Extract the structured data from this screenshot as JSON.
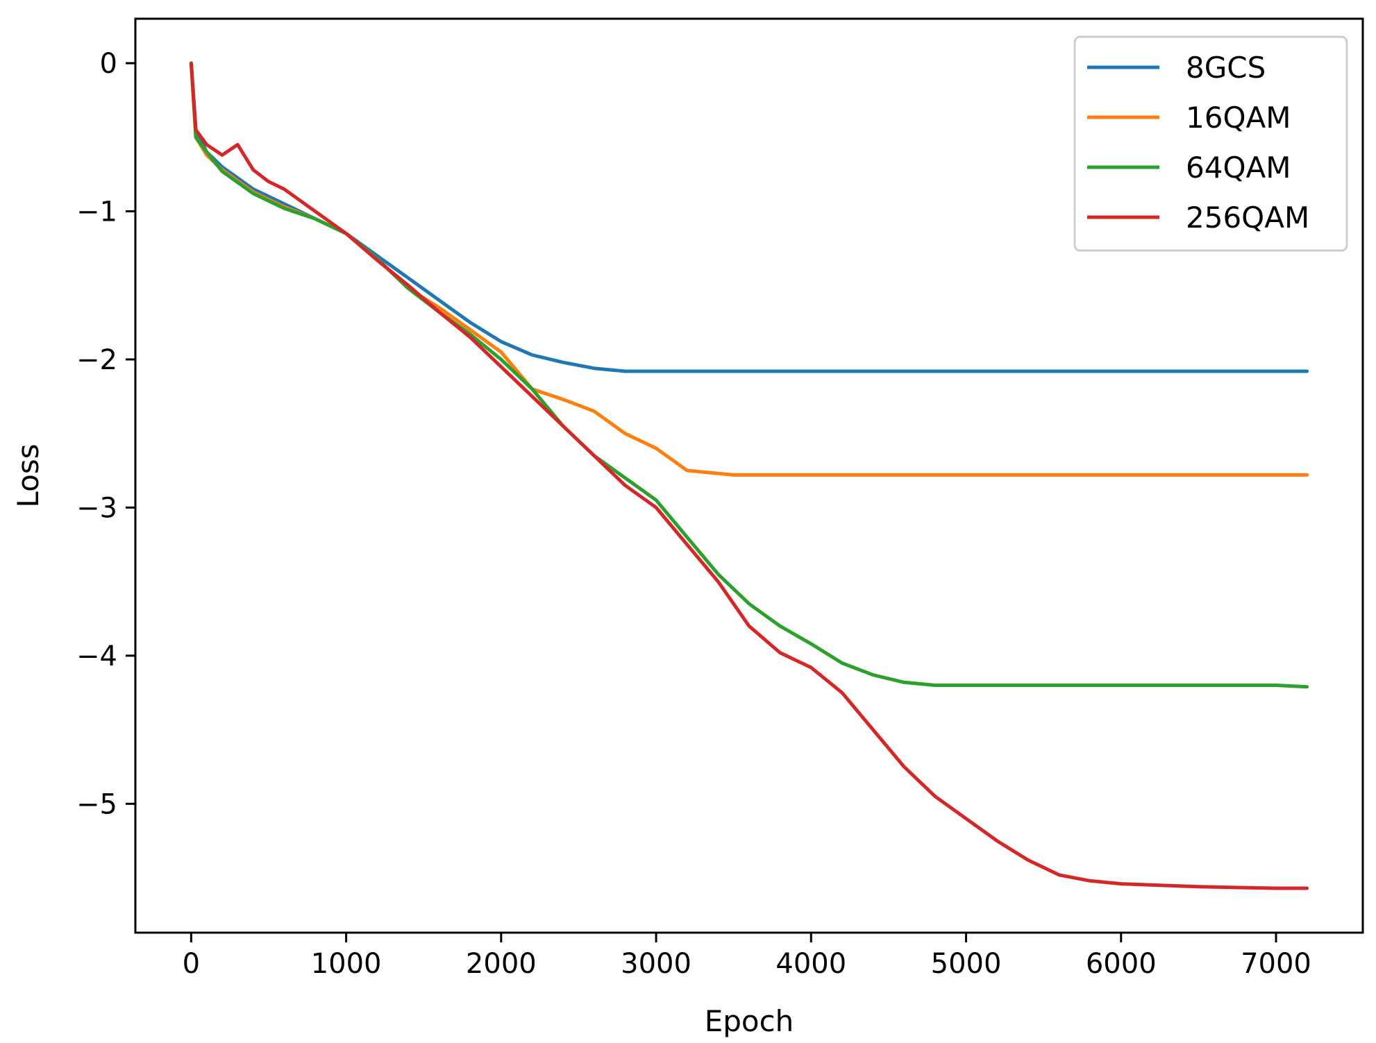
{
  "chart_data": {
    "type": "line",
    "xlabel": "Epoch",
    "ylabel": "Loss",
    "xlim": [
      -360,
      7560
    ],
    "ylim": [
      -5.87,
      0.3
    ],
    "xticks": [
      0,
      1000,
      2000,
      3000,
      4000,
      5000,
      6000,
      7000
    ],
    "xtick_labels": [
      "0",
      "1000",
      "2000",
      "3000",
      "4000",
      "5000",
      "6000",
      "7000"
    ],
    "yticks": [
      0,
      -1,
      -2,
      -3,
      -4,
      -5
    ],
    "ytick_labels": [
      "0",
      "−1",
      "−2",
      "−3",
      "−4",
      "−5"
    ],
    "grid": false,
    "legend_position": "top-right",
    "series": [
      {
        "name": "8GCS",
        "color": "#1f77b4",
        "x": [
          0,
          30,
          100,
          200,
          400,
          600,
          800,
          1000,
          1200,
          1400,
          1600,
          1800,
          2000,
          2200,
          2400,
          2600,
          2800,
          3000,
          3500,
          4000,
          4500,
          5000,
          5500,
          6000,
          6500,
          7000,
          7200
        ],
        "y": [
          0,
          -0.45,
          -0.6,
          -0.7,
          -0.85,
          -0.95,
          -1.05,
          -1.15,
          -1.3,
          -1.45,
          -1.6,
          -1.75,
          -1.88,
          -1.97,
          -2.02,
          -2.06,
          -2.08,
          -2.08,
          -2.08,
          -2.08,
          -2.08,
          -2.08,
          -2.08,
          -2.08,
          -2.08,
          -2.08,
          -2.08
        ]
      },
      {
        "name": "16QAM",
        "color": "#ff7f0e",
        "x": [
          0,
          30,
          100,
          200,
          400,
          600,
          800,
          1000,
          1200,
          1400,
          1600,
          1800,
          2000,
          2200,
          2400,
          2600,
          2800,
          3000,
          3200,
          3500,
          4000,
          4500,
          5000,
          5500,
          6000,
          6500,
          7000,
          7200
        ],
        "y": [
          0,
          -0.5,
          -0.62,
          -0.72,
          -0.87,
          -0.97,
          -1.05,
          -1.15,
          -1.32,
          -1.52,
          -1.65,
          -1.8,
          -1.95,
          -2.2,
          -2.27,
          -2.35,
          -2.5,
          -2.6,
          -2.75,
          -2.78,
          -2.78,
          -2.78,
          -2.78,
          -2.78,
          -2.78,
          -2.78,
          -2.78,
          -2.78
        ]
      },
      {
        "name": "64QAM",
        "color": "#2ca02c",
        "x": [
          0,
          30,
          100,
          200,
          400,
          600,
          800,
          1000,
          1200,
          1400,
          1600,
          1800,
          2000,
          2200,
          2400,
          2600,
          2800,
          3000,
          3200,
          3400,
          3600,
          3800,
          4000,
          4200,
          4400,
          4600,
          4800,
          5000,
          5500,
          6000,
          6500,
          7000,
          7200
        ],
        "y": [
          0,
          -0.5,
          -0.6,
          -0.73,
          -0.88,
          -0.98,
          -1.05,
          -1.15,
          -1.32,
          -1.52,
          -1.68,
          -1.83,
          -2.0,
          -2.2,
          -2.45,
          -2.65,
          -2.8,
          -2.95,
          -3.2,
          -3.45,
          -3.65,
          -3.8,
          -3.92,
          -4.05,
          -4.13,
          -4.18,
          -4.2,
          -4.2,
          -4.2,
          -4.2,
          -4.2,
          -4.2,
          -4.21
        ]
      },
      {
        "name": "256QAM",
        "color": "#d62728",
        "x": [
          0,
          30,
          100,
          200,
          300,
          400,
          500,
          600,
          800,
          1000,
          1200,
          1400,
          1600,
          1800,
          2000,
          2200,
          2400,
          2600,
          2800,
          3000,
          3200,
          3400,
          3600,
          3800,
          4000,
          4200,
          4400,
          4600,
          4800,
          5000,
          5200,
          5400,
          5600,
          5800,
          6000,
          6500,
          7000,
          7200
        ],
        "y": [
          0,
          -0.45,
          -0.55,
          -0.62,
          -0.55,
          -0.72,
          -0.8,
          -0.85,
          -1.0,
          -1.15,
          -1.33,
          -1.5,
          -1.68,
          -1.85,
          -2.05,
          -2.25,
          -2.45,
          -2.65,
          -2.85,
          -3.0,
          -3.25,
          -3.5,
          -3.8,
          -3.98,
          -4.08,
          -4.25,
          -4.5,
          -4.75,
          -4.95,
          -5.1,
          -5.25,
          -5.38,
          -5.48,
          -5.52,
          -5.54,
          -5.56,
          -5.57,
          -5.57
        ]
      }
    ]
  }
}
